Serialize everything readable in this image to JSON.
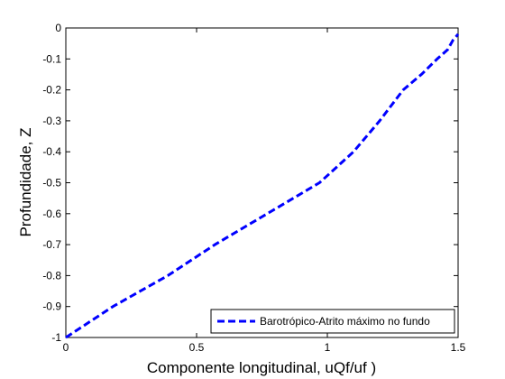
{
  "chart_data": {
    "type": "line",
    "title": "",
    "xlabel": "Componente longitudinal, uQf/uf )",
    "ylabel": "Profundidade, Z",
    "xlim": [
      0,
      1.5
    ],
    "ylim": [
      -1,
      0
    ],
    "xticks": [
      0,
      0.5,
      1,
      1.5
    ],
    "xtick_labels": [
      "0",
      "0.5",
      "1",
      "1.5"
    ],
    "yticks": [
      0,
      -0.1,
      -0.2,
      -0.3,
      -0.4,
      -0.5,
      -0.6,
      -0.7,
      -0.8,
      -0.9,
      -1
    ],
    "ytick_labels": [
      "0",
      "-0.1",
      "-0.2",
      "-0.3",
      "-0.4",
      "-0.5",
      "-0.6",
      "-0.7",
      "-0.8",
      "-0.9",
      "-1"
    ],
    "grid": false,
    "legend_position": "bottom-right",
    "series": [
      {
        "name": "Barotrópico-Atrito máximo no fundo",
        "color": "#0000ff",
        "line_style": "dashed",
        "x": [
          0,
          0.18,
          0.39,
          0.57,
          0.77,
          0.97,
          1.1,
          1.2,
          1.29,
          1.36,
          1.42,
          1.46,
          1.48,
          1.5
        ],
        "y": [
          -1,
          -0.9,
          -0.8,
          -0.7,
          -0.6,
          -0.5,
          -0.4,
          -0.3,
          -0.2,
          -0.15,
          -0.1,
          -0.07,
          -0.04,
          -0.02
        ]
      }
    ]
  }
}
